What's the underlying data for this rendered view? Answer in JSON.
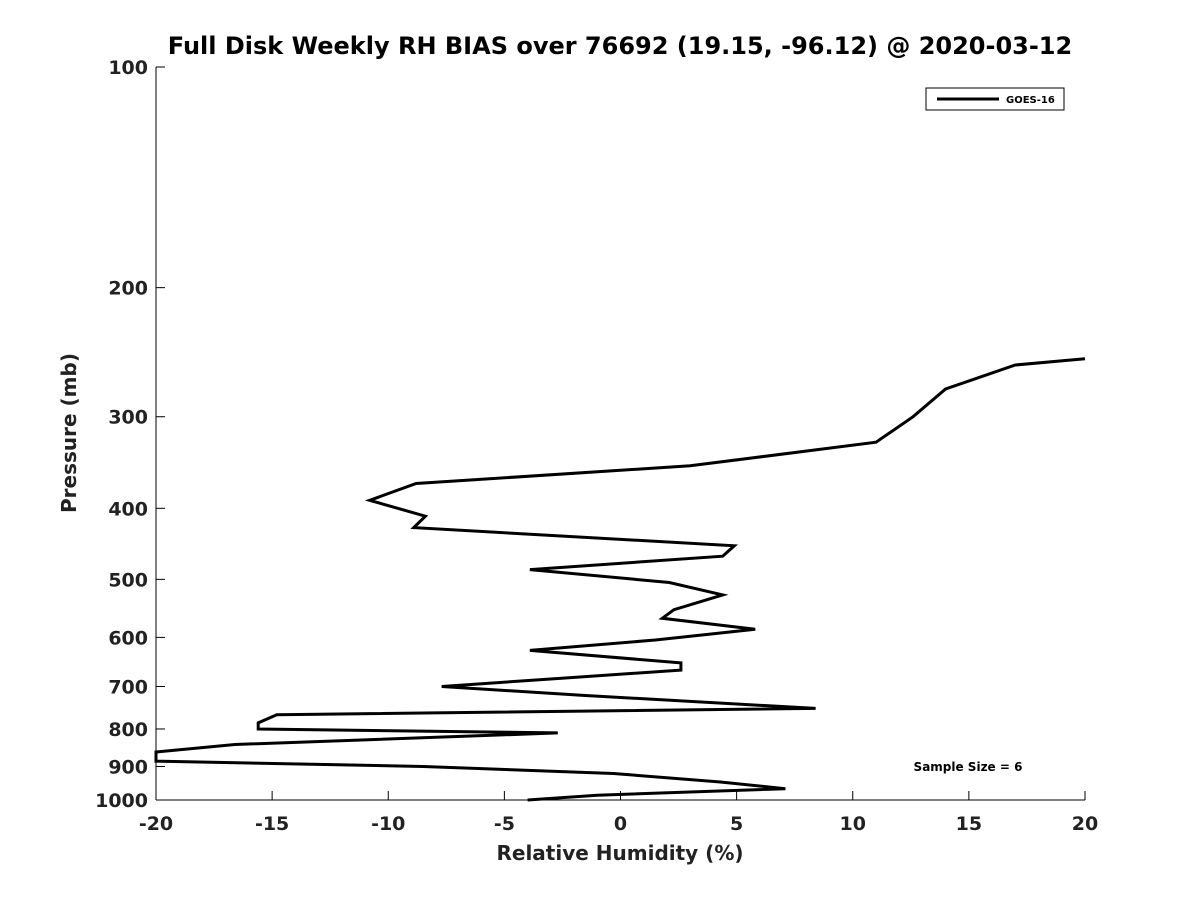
{
  "chart_data": {
    "type": "line",
    "title": "Full Disk Weekly RH BIAS over 76692 (19.15, -96.12) @ 2020-03-12",
    "xlabel": "Relative Humidity (%)",
    "ylabel": "Pressure (mb)",
    "xlim": [
      -20,
      20
    ],
    "ylim": [
      1000,
      100
    ],
    "y_scale": "log",
    "y_reversed": true,
    "x_ticks": [
      -20,
      -15,
      -10,
      -5,
      0,
      5,
      10,
      15,
      20
    ],
    "x_tick_labels": [
      "-20",
      "-15",
      "-10",
      "-5",
      "0",
      "5",
      "10",
      "15",
      "20"
    ],
    "y_ticks": [
      100,
      200,
      300,
      400,
      500,
      600,
      700,
      800,
      900,
      1000
    ],
    "y_tick_labels": [
      "100",
      "200",
      "300",
      "400",
      "500",
      "600",
      "700",
      "800",
      "900",
      "1000"
    ],
    "grid": false,
    "legend_position": "top-right",
    "line_color": "#000000",
    "series": [
      {
        "name": "GOES-16",
        "points": [
          [
            20.0,
            250
          ],
          [
            17.0,
            255
          ],
          [
            14.0,
            275
          ],
          [
            12.6,
            300
          ],
          [
            11.0,
            325
          ],
          [
            3.0,
            350
          ],
          [
            -8.8,
            370
          ],
          [
            -10.8,
            390
          ],
          [
            -8.4,
            410
          ],
          [
            -8.9,
            425
          ],
          [
            4.9,
            450
          ],
          [
            4.4,
            465
          ],
          [
            -3.9,
            485
          ],
          [
            2.1,
            505
          ],
          [
            4.4,
            525
          ],
          [
            2.3,
            550
          ],
          [
            1.8,
            565
          ],
          [
            5.8,
            585
          ],
          [
            1.5,
            605
          ],
          [
            -3.9,
            625
          ],
          [
            2.6,
            650
          ],
          [
            2.6,
            665
          ],
          [
            -1.9,
            680
          ],
          [
            -7.7,
            700
          ],
          [
            -1.6,
            720
          ],
          [
            8.4,
            750
          ],
          [
            -14.8,
            765
          ],
          [
            -15.6,
            785
          ],
          [
            -15.6,
            800
          ],
          [
            -2.7,
            810
          ],
          [
            -16.6,
            840
          ],
          [
            -20.0,
            860
          ],
          [
            -20.0,
            885
          ],
          [
            -8.5,
            900
          ],
          [
            -0.3,
            920
          ],
          [
            4.3,
            945
          ],
          [
            7.1,
            965
          ],
          [
            -1.0,
            985
          ],
          [
            -4.0,
            1000
          ]
        ]
      }
    ],
    "annotation": "Sample Size = 6"
  }
}
